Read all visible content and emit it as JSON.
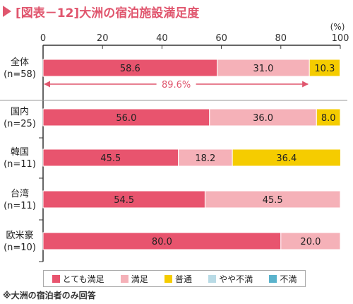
{
  "title": "[図表－12]大洲の宿泊施設満足度",
  "footnote": "※大洲の宿泊者のみ回答",
  "colors": {
    "title": "#e0566e",
    "axis": "#333333",
    "arrow": "#e0566e"
  },
  "chart_data": {
    "type": "bar",
    "orientation": "horizontal",
    "stacked": true,
    "unit_label": "(%)",
    "xlim": [
      0,
      100
    ],
    "x_ticks": [
      0,
      20,
      40,
      60,
      80,
      100
    ],
    "categories": [
      {
        "name": "全体",
        "sub": "(n=58)"
      },
      {
        "name": "国内",
        "sub": "(n=25)"
      },
      {
        "name": "韓国",
        "sub": "(n=11)"
      },
      {
        "name": "台湾",
        "sub": "(n=11)"
      },
      {
        "name": "欧米豪",
        "sub": "(n=10)"
      }
    ],
    "series": [
      {
        "name": "とても満足",
        "color": "#e8546e",
        "values": [
          58.6,
          56.0,
          45.5,
          54.5,
          80.0
        ],
        "labels": [
          "58.6",
          "56.0",
          "45.5",
          "54.5",
          "80.0"
        ]
      },
      {
        "name": "満足",
        "color": "#f5b1b8",
        "values": [
          31.0,
          36.0,
          18.2,
          45.5,
          20.0
        ],
        "labels": [
          "31.0",
          "36.0",
          "18.2",
          "45.5",
          "20.0"
        ]
      },
      {
        "name": "普通",
        "color": "#f5cc00",
        "values": [
          10.3,
          8.0,
          36.4,
          0,
          0
        ],
        "labels": [
          "10.3",
          "8.0",
          "36.4",
          "",
          ""
        ]
      },
      {
        "name": "やや不満",
        "color": "#b9dbe6",
        "values": [
          0,
          0,
          0,
          0,
          0
        ],
        "labels": [
          "",
          "",
          "",
          "",
          ""
        ]
      },
      {
        "name": "不満",
        "color": "#5ab3cc",
        "values": [
          0,
          0,
          0,
          0,
          0
        ],
        "labels": [
          "",
          "",
          "",
          "",
          ""
        ]
      }
    ],
    "annotation": {
      "category_index": 0,
      "from": 0,
      "to": 89.6,
      "label": "89.6%"
    }
  }
}
